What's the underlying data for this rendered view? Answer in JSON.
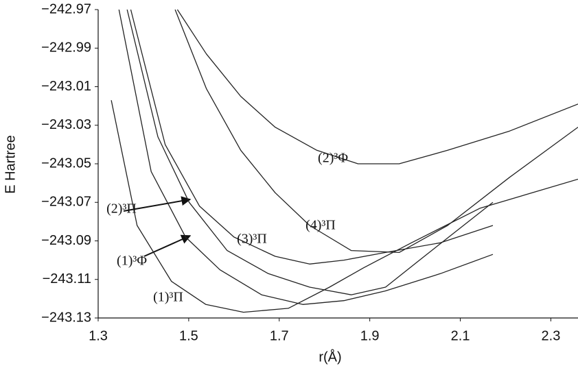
{
  "chart_data": {
    "type": "line",
    "xlabel": "r(Å)",
    "ylabel": "E Hartree",
    "xlim": [
      1.3,
      2.36
    ],
    "ylim": [
      -243.13,
      -242.97
    ],
    "xticks": [
      1.3,
      1.5,
      1.7,
      1.9,
      2.1,
      2.3
    ],
    "yticks": [
      {
        "value": -242.97,
        "label": "−242.97"
      },
      {
        "value": -242.99,
        "label": "−242.99"
      },
      {
        "value": -243.01,
        "label": "−243.01"
      },
      {
        "value": -243.03,
        "label": "−243.03"
      },
      {
        "value": -243.05,
        "label": "−243.05"
      },
      {
        "value": -243.07,
        "label": "−243.07"
      },
      {
        "value": -243.09,
        "label": "−243.09"
      },
      {
        "value": -243.11,
        "label": "−243.11"
      },
      {
        "value": -243.13,
        "label": "−243.13"
      }
    ],
    "grid": false,
    "series": [
      {
        "name": "(1)³Π",
        "color": "#222222",
        "x": [
          1.329,
          1.386,
          1.462,
          1.538,
          1.621,
          1.72,
          1.811,
          1.886,
          1.992,
          2.144,
          2.36
        ],
        "values": [
          -243.017,
          -243.082,
          -243.111,
          -243.123,
          -243.127,
          -243.125,
          -243.114,
          -243.104,
          -243.091,
          -243.073,
          -243.058
        ]
      },
      {
        "name": "(1)³Φ",
        "color": "#222222",
        "x": [
          1.346,
          1.417,
          1.493,
          1.569,
          1.661,
          1.752,
          1.843,
          1.934,
          2.056,
          2.172
        ],
        "values": [
          -242.97,
          -243.054,
          -243.088,
          -243.105,
          -243.118,
          -243.123,
          -243.121,
          -243.116,
          -243.107,
          -243.097
        ]
      },
      {
        "name": "(2)³Π",
        "color": "#222222",
        "x": [
          1.364,
          1.432,
          1.501,
          1.585,
          1.676,
          1.767,
          1.859,
          1.935,
          2.026,
          2.172
        ],
        "values": [
          -242.97,
          -243.036,
          -243.07,
          -243.095,
          -243.107,
          -243.114,
          -243.118,
          -243.114,
          -243.097,
          -243.07
        ]
      },
      {
        "name": "(3)³Π",
        "color": "#222222",
        "x": [
          1.372,
          1.448,
          1.524,
          1.6,
          1.691,
          1.767,
          1.843,
          1.935,
          2.056,
          2.172
        ],
        "values": [
          -242.97,
          -243.04,
          -243.072,
          -243.088,
          -243.098,
          -243.102,
          -243.1,
          -243.096,
          -243.091,
          -243.082
        ]
      },
      {
        "name": "(4)³Π",
        "color": "#222222",
        "x": [
          1.47,
          1.539,
          1.615,
          1.691,
          1.767,
          1.859,
          1.965,
          2.072,
          2.209,
          2.36
        ],
        "values": [
          -242.97,
          -243.011,
          -243.043,
          -243.065,
          -243.082,
          -243.095,
          -243.096,
          -243.082,
          -243.057,
          -243.031
        ]
      },
      {
        "name": "(2)³Φ",
        "color": "#222222",
        "x": [
          1.475,
          1.539,
          1.615,
          1.691,
          1.783,
          1.874,
          1.965,
          2.072,
          2.209,
          2.36
        ],
        "values": [
          -242.97,
          -242.993,
          -243.015,
          -243.031,
          -243.043,
          -243.05,
          -243.05,
          -243.043,
          -243.033,
          -243.019
        ]
      }
    ]
  }
}
